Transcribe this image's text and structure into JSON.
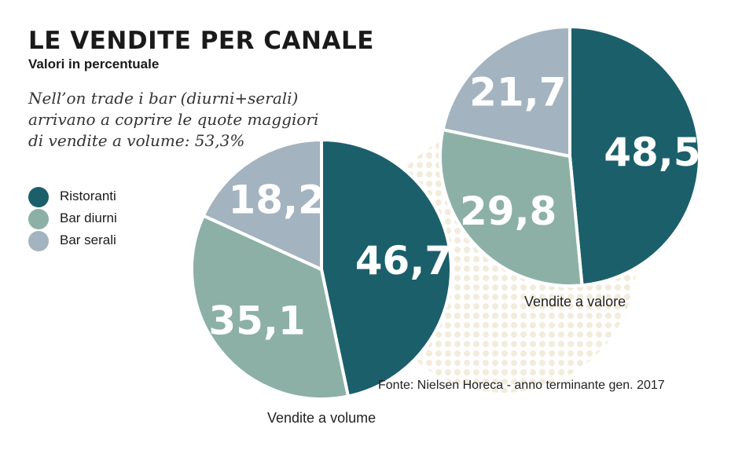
{
  "header": {
    "title": "LE VENDITE PER CANALE",
    "subtitle": "Valori in percentuale",
    "note": "Nell’on trade i bar (diurni+serali) arrivano a coprire le quote maggiori di vendite a volume: 53,3%"
  },
  "legend": [
    {
      "label": "Ristoranti",
      "color": "#1b5f6b"
    },
    {
      "label": "Bar diurni",
      "color": "#8cb0a6"
    },
    {
      "label": "Bar serali",
      "color": "#a3b3bf"
    }
  ],
  "source": "Fonte: Nielsen Horeca -  anno terminante gen. 2017",
  "chart_data": [
    {
      "type": "pie",
      "title": "Vendite a volume",
      "categories": [
        "Ristoranti",
        "Bar diurni",
        "Bar serali"
      ],
      "values": [
        46.7,
        35.1,
        18.2
      ],
      "labels": [
        "46,7",
        "35,1",
        "18,2"
      ],
      "colors": [
        "#1b5f6b",
        "#8cb0a6",
        "#a3b3bf"
      ]
    },
    {
      "type": "pie",
      "title": "Vendite a valore",
      "categories": [
        "Ristoranti",
        "Bar diurni",
        "Bar serali"
      ],
      "values": [
        48.5,
        29.8,
        21.7
      ],
      "labels": [
        "48,5",
        "29,8",
        "21,7"
      ],
      "colors": [
        "#1b5f6b",
        "#8cb0a6",
        "#a3b3bf"
      ]
    }
  ]
}
